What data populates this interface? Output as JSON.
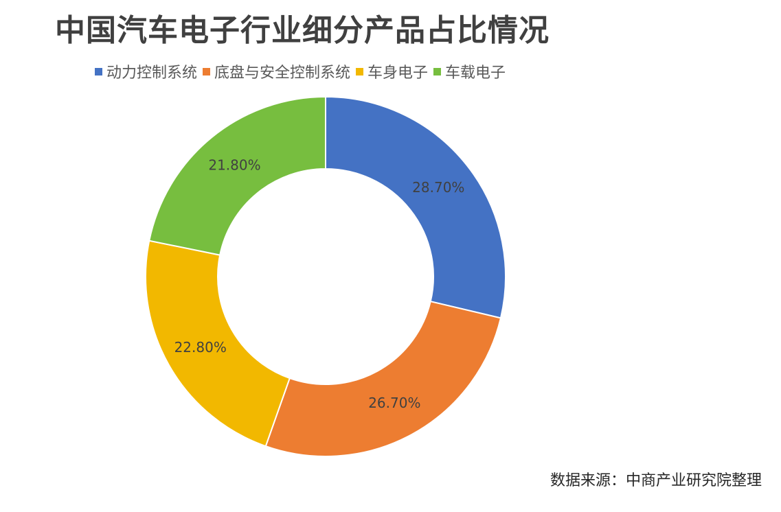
{
  "chart_data": {
    "type": "pie",
    "variant": "donut",
    "title": "中国汽车电子行业细分产品占比情况",
    "categories": [
      "动力控制系统",
      "底盘与安全控制系统",
      "车身电子",
      "车载电子"
    ],
    "values": [
      28.7,
      26.7,
      22.8,
      21.8
    ],
    "labels": [
      "28.70%",
      "26.70%",
      "22.80%",
      "21.80%"
    ],
    "colors": [
      "#4472C4",
      "#ED7D31",
      "#F2B800",
      "#77BE3F"
    ],
    "legend_position": "top"
  },
  "source_text": "数据来源：中商产业研究院整理"
}
